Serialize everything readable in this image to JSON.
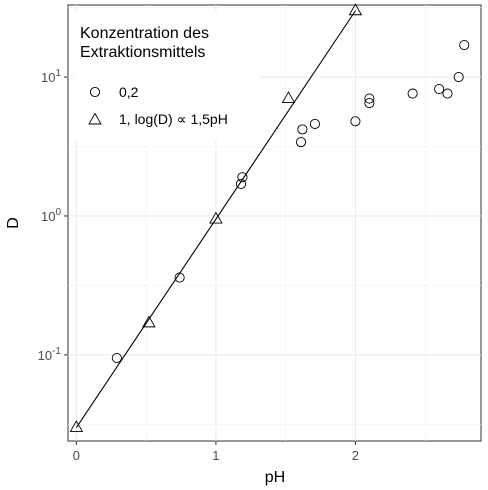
{
  "chart_data": {
    "type": "scatter",
    "xlabel": "pH",
    "ylabel": "D",
    "xlim": [
      -0.06,
      2.9
    ],
    "ylim": [
      0.024,
      33
    ],
    "yscale": "log",
    "grid": true,
    "x_ticks": [
      {
        "value": 0,
        "label": "0"
      },
      {
        "value": 1,
        "label": "1"
      },
      {
        "value": 2,
        "label": "2"
      }
    ],
    "y_ticks": [
      {
        "value": 0.1,
        "base": "10",
        "exp": "-1"
      },
      {
        "value": 1,
        "base": "10",
        "exp": "0"
      },
      {
        "value": 10,
        "base": "10",
        "exp": "1"
      }
    ],
    "legend": {
      "title_lines": [
        "Konzentration des",
        "Extraktionsmittels"
      ],
      "placement": "top-left",
      "entries": [
        {
          "label": "0,2",
          "shape": "circle"
        },
        {
          "label": "1, log(D) ∝ 1,5pH",
          "shape": "triangle"
        }
      ]
    },
    "series": [
      {
        "name": "0,2",
        "shape": "circle",
        "points": [
          {
            "x": 0.29,
            "y": 0.095
          },
          {
            "x": 0.74,
            "y": 0.36
          },
          {
            "x": 1.18,
            "y": 1.7
          },
          {
            "x": 1.19,
            "y": 1.9
          },
          {
            "x": 1.61,
            "y": 3.4
          },
          {
            "x": 1.62,
            "y": 4.2
          },
          {
            "x": 1.71,
            "y": 4.6
          },
          {
            "x": 2.0,
            "y": 4.8
          },
          {
            "x": 2.1,
            "y": 6.5
          },
          {
            "x": 2.1,
            "y": 7.0
          },
          {
            "x": 2.41,
            "y": 7.6
          },
          {
            "x": 2.6,
            "y": 8.2
          },
          {
            "x": 2.66,
            "y": 7.6
          },
          {
            "x": 2.74,
            "y": 10.0
          },
          {
            "x": 2.78,
            "y": 17.0
          }
        ]
      },
      {
        "name": "1, log(D) ∝ 1,5pH",
        "shape": "triangle",
        "points": [
          {
            "x": 0.0,
            "y": 0.03
          },
          {
            "x": 0.52,
            "y": 0.17
          },
          {
            "x": 1.0,
            "y": 0.95
          },
          {
            "x": 1.52,
            "y": 7.0
          },
          {
            "x": 2.0,
            "y": 30.0
          }
        ],
        "fit_line": {
          "x": [
            0.0,
            2.0
          ],
          "y": [
            0.03,
            30.0
          ]
        }
      }
    ]
  }
}
